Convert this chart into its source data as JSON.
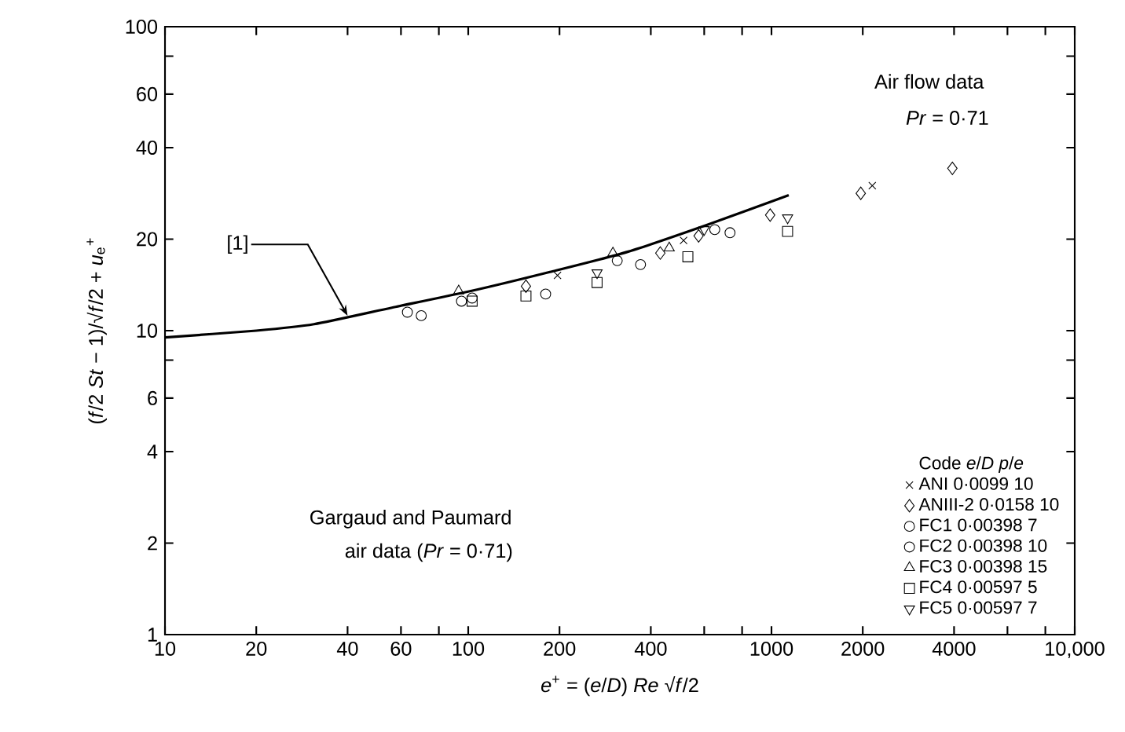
{
  "chart_data": {
    "type": "scatter",
    "xlabel": "*e*$^{+}$ = (*e*/*D*) *Re* √*f*/2",
    "ylabel": "(*f*/2 *St* − 1)/√*f*/2 + *u*$_{e}$$^{+}$",
    "log": "xy",
    "xlim": [
      10,
      10000
    ],
    "ylim": [
      1,
      100
    ],
    "xticks": [
      10,
      20,
      40,
      60,
      {
        "value": 80,
        "label": null
      },
      100,
      200,
      400,
      {
        "value": 600,
        "label": null
      },
      {
        "value": 800,
        "label": null
      },
      1000,
      2000,
      4000,
      {
        "value": 6000,
        "label": null
      },
      {
        "value": 8000,
        "label": null
      },
      {
        "value": 10000,
        "label": "10,000"
      }
    ],
    "yticks": [
      1,
      2,
      4,
      6,
      {
        "value": 8,
        "label": null
      },
      10,
      20,
      40,
      60,
      {
        "value": 80,
        "label": null
      },
      100
    ],
    "grid": false,
    "legend": "bottom right",
    "legend_title": "Code   *e*/*D*   *p*/*e*",
    "series": [
      {
        "type": "line",
        "color": "#000000",
        "line_style": "solid",
        "marker": "none",
        "x": [
          10,
          20,
          31,
          56,
          102,
          186,
          337,
          614,
          1140
        ],
        "values": [
          9.5,
          10.0,
          10.5,
          11.9,
          13.5,
          15.6,
          18.2,
          22.3,
          27.9
        ]
      },
      {
        "name": "ANI   0·0099   10",
        "color": "#000000",
        "marker": "cross",
        "x": [
          197,
          513,
          2150
        ],
        "values": [
          15.2,
          19.8,
          30
        ]
      },
      {
        "name": "ANIII-2   0·0158   10",
        "color": "#000000",
        "marker": "diamond",
        "x": [
          155,
          430,
          575,
          990,
          1970,
          3950
        ],
        "values": [
          14,
          18,
          20.5,
          24,
          28.3,
          34.2
        ]
      },
      {
        "name": "FC1   0·00398   7",
        "color": "#000000",
        "marker": "circle",
        "x": [
          63,
          95,
          310,
          650
        ],
        "values": [
          11.5,
          12.5,
          17,
          21.5
        ]
      },
      {
        "name": "FC2   0·00398   10",
        "color": "#000000",
        "marker": "circle",
        "x": [
          70,
          103,
          180,
          370,
          730
        ],
        "values": [
          11.2,
          12.8,
          13.2,
          16.5,
          21
        ]
      },
      {
        "name": "FC3   0·00398   15",
        "color": "#000000",
        "marker": "triangle",
        "x": [
          93,
          300,
          460
        ],
        "values": [
          13.5,
          18,
          18.7
        ]
      },
      {
        "name": "FC4   0·00597   5",
        "color": "#000000",
        "marker": "square",
        "x": [
          103,
          155,
          266,
          530,
          1130
        ],
        "values": [
          12.5,
          13,
          14.4,
          17.5,
          21.2
        ]
      },
      {
        "name": "FC5   0·00597   7",
        "color": "#000000",
        "marker": "triangle down",
        "x": [
          266,
          600,
          1130
        ],
        "values": [
          15.5,
          21.5,
          23.5
        ]
      }
    ],
    "annotations": [
      "Air flow data",
      "*Pr* = 0·71",
      "Gargaud and Paumard",
      "air data (*Pr* = 0·71)",
      {
        "text": "[1]",
        "x": 40,
        "y": 11.2
      }
    ]
  }
}
